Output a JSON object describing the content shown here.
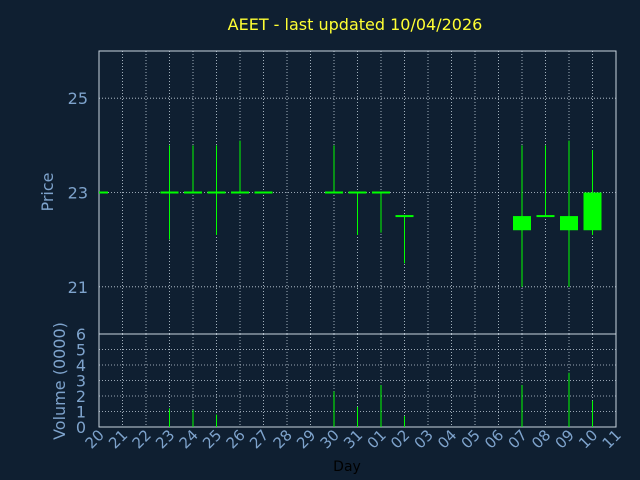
{
  "colors": {
    "background": "#0f1f31",
    "frame": "#c8d4e0",
    "grid": "#c8d4e0",
    "title": "#ffff33",
    "ticks": "#7ea3cc",
    "candle": "#00ff00",
    "xlabel": "#000000"
  },
  "chart_data": [
    {
      "type": "candlestick",
      "title": "AEET - last updated 10/04/2026",
      "ylabel": "Price",
      "ylim": [
        20,
        26
      ],
      "y_ticks": [
        "21",
        "23",
        "25"
      ],
      "y_tick_values": [
        21,
        23,
        25
      ],
      "grid": true,
      "categories": [
        "20",
        "21",
        "22",
        "23",
        "24",
        "25",
        "26",
        "27",
        "28",
        "29",
        "30",
        "31",
        "01",
        "02",
        "03",
        "04",
        "05",
        "06",
        "07",
        "08",
        "09",
        "10",
        "11"
      ],
      "candles": [
        {
          "x": "20",
          "open": 23.0,
          "high": 23.0,
          "low": 23.0,
          "close": 23.0
        },
        {
          "x": "23",
          "open": 23.0,
          "high": 24.0,
          "low": 22.0,
          "close": 23.0
        },
        {
          "x": "24",
          "open": 23.0,
          "high": 24.0,
          "low": 23.0,
          "close": 23.0
        },
        {
          "x": "25",
          "open": 23.0,
          "high": 24.0,
          "low": 22.1,
          "close": 23.0
        },
        {
          "x": "26",
          "open": 23.0,
          "high": 24.1,
          "low": 23.0,
          "close": 23.0
        },
        {
          "x": "27",
          "open": 23.0,
          "high": 23.0,
          "low": 23.0,
          "close": 23.0
        },
        {
          "x": "30",
          "open": 23.0,
          "high": 24.0,
          "low": 23.0,
          "close": 23.0
        },
        {
          "x": "31",
          "open": 23.0,
          "high": 23.0,
          "low": 22.1,
          "close": 23.0
        },
        {
          "x": "01",
          "open": 23.0,
          "high": 23.0,
          "low": 22.15,
          "close": 23.0
        },
        {
          "x": "02",
          "open": 22.5,
          "high": 22.5,
          "low": 21.5,
          "close": 22.5
        },
        {
          "x": "07",
          "open": 22.5,
          "high": 24.0,
          "low": 21.0,
          "close": 22.2
        },
        {
          "x": "08",
          "open": 22.5,
          "high": 24.0,
          "low": 22.5,
          "close": 22.5
        },
        {
          "x": "09",
          "open": 22.5,
          "high": 24.1,
          "low": 21.0,
          "close": 22.2
        },
        {
          "x": "10",
          "open": 22.2,
          "high": 23.9,
          "low": 22.1,
          "close": 23.0
        }
      ]
    },
    {
      "type": "bar",
      "ylabel": "Volume (0000)",
      "xlabel": "Day",
      "ylim": [
        0,
        6
      ],
      "y_ticks": [
        "0",
        "1",
        "2",
        "3",
        "4",
        "5",
        "6"
      ],
      "y_tick_values": [
        0,
        1,
        2,
        3,
        4,
        5,
        6
      ],
      "grid": true,
      "categories": [
        "20",
        "21",
        "22",
        "23",
        "24",
        "25",
        "26",
        "27",
        "28",
        "29",
        "30",
        "31",
        "01",
        "02",
        "03",
        "04",
        "05",
        "06",
        "07",
        "08",
        "09",
        "10",
        "11"
      ],
      "values": [
        {
          "x": "23",
          "value": 1.2
        },
        {
          "x": "24",
          "value": 1.1
        },
        {
          "x": "25",
          "value": 0.8
        },
        {
          "x": "30",
          "value": 2.3
        },
        {
          "x": "31",
          "value": 1.3
        },
        {
          "x": "01",
          "value": 2.7
        },
        {
          "x": "02",
          "value": 0.7
        },
        {
          "x": "07",
          "value": 2.7
        },
        {
          "x": "09",
          "value": 3.5
        },
        {
          "x": "10",
          "value": 1.7
        }
      ]
    }
  ]
}
